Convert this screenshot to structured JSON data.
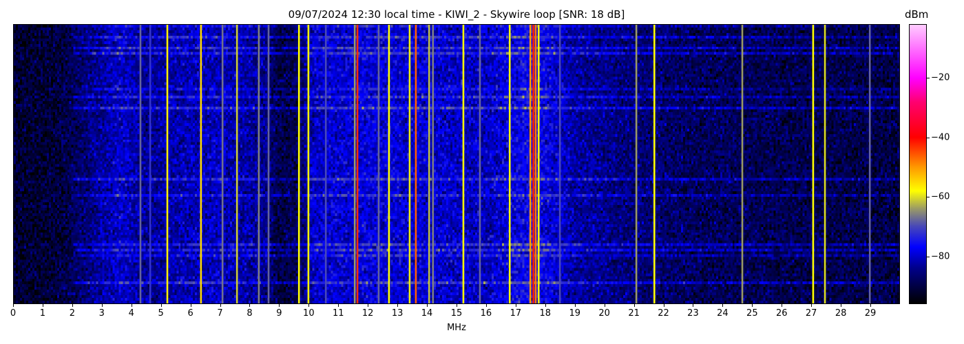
{
  "chart_data": {
    "type": "heatmap",
    "title": "09/07/2024 12:30 local time - KIWI_2 - Skywire loop [SNR: 18 dB]",
    "xlabel": "MHz",
    "ylabel": "",
    "xlim": [
      0,
      30
    ],
    "x_ticks": [
      "0",
      "1",
      "2",
      "3",
      "4",
      "5",
      "6",
      "7",
      "8",
      "9",
      "10",
      "11",
      "12",
      "13",
      "14",
      "15",
      "16",
      "17",
      "18",
      "19",
      "20",
      "21",
      "22",
      "23",
      "24",
      "25",
      "26",
      "27",
      "28",
      "29"
    ],
    "colorbar": {
      "label": "dBm",
      "range": [
        -96,
        -2
      ],
      "ticks": [
        "−20",
        "−40",
        "−60",
        "−80"
      ],
      "tick_values": [
        -20,
        -40,
        -60,
        -80
      ],
      "colormap_stops": [
        {
          "dbm": -96,
          "color": "#000000"
        },
        {
          "dbm": -84,
          "color": "#00008c"
        },
        {
          "dbm": -77,
          "color": "#0000ff"
        },
        {
          "dbm": -70,
          "color": "#4848b8"
        },
        {
          "dbm": -64,
          "color": "#9a9a66"
        },
        {
          "dbm": -58,
          "color": "#ffff00"
        },
        {
          "dbm": -50,
          "color": "#ff9900"
        },
        {
          "dbm": -40,
          "color": "#ff0000"
        },
        {
          "dbm": -28,
          "color": "#ff0070"
        },
        {
          "dbm": -20,
          "color": "#ff00ff"
        },
        {
          "dbm": -2,
          "color": "#ffccff"
        }
      ]
    },
    "background_level_dbm": [
      {
        "mhz": 0,
        "dbm": -92
      },
      {
        "mhz": 1.5,
        "dbm": -91
      },
      {
        "mhz": 2.5,
        "dbm": -86
      },
      {
        "mhz": 3.6,
        "dbm": -80
      },
      {
        "mhz": 4.5,
        "dbm": -84
      },
      {
        "mhz": 5.5,
        "dbm": -82
      },
      {
        "mhz": 7,
        "dbm": -81
      },
      {
        "mhz": 8.5,
        "dbm": -84
      },
      {
        "mhz": 9,
        "dbm": -90
      },
      {
        "mhz": 9.6,
        "dbm": -89
      },
      {
        "mhz": 10.2,
        "dbm": -80
      },
      {
        "mhz": 12,
        "dbm": -79
      },
      {
        "mhz": 14,
        "dbm": -80
      },
      {
        "mhz": 16,
        "dbm": -81
      },
      {
        "mhz": 17.6,
        "dbm": -76
      },
      {
        "mhz": 19,
        "dbm": -83
      },
      {
        "mhz": 21,
        "dbm": -86
      },
      {
        "mhz": 23,
        "dbm": -88
      },
      {
        "mhz": 26,
        "dbm": -89
      },
      {
        "mhz": 30,
        "dbm": -90
      }
    ],
    "signals": [
      {
        "mhz": 4.29,
        "dbm": -68
      },
      {
        "mhz": 4.62,
        "dbm": -72
      },
      {
        "mhz": 5.2,
        "dbm": -57
      },
      {
        "mhz": 6.34,
        "dbm": -55
      },
      {
        "mhz": 7.07,
        "dbm": -67
      },
      {
        "mhz": 7.56,
        "dbm": -61
      },
      {
        "mhz": 8.3,
        "dbm": -66
      },
      {
        "mhz": 8.63,
        "dbm": -68
      },
      {
        "mhz": 9.66,
        "dbm": -58
      },
      {
        "mhz": 9.98,
        "dbm": -58
      },
      {
        "mhz": 10.57,
        "dbm": -70
      },
      {
        "mhz": 11.55,
        "dbm": -64
      },
      {
        "mhz": 11.64,
        "dbm": -43
      },
      {
        "mhz": 12.36,
        "dbm": -68
      },
      {
        "mhz": 12.71,
        "dbm": -58
      },
      {
        "mhz": 13.41,
        "dbm": -59
      },
      {
        "mhz": 13.62,
        "dbm": -46
      },
      {
        "mhz": 14.07,
        "dbm": -62
      },
      {
        "mhz": 14.2,
        "dbm": -66
      },
      {
        "mhz": 15.23,
        "dbm": -58
      },
      {
        "mhz": 15.79,
        "dbm": -68
      },
      {
        "mhz": 16.8,
        "dbm": -58
      },
      {
        "mhz": 17.5,
        "dbm": -50
      },
      {
        "mhz": 17.6,
        "dbm": -42
      },
      {
        "mhz": 17.68,
        "dbm": -48
      },
      {
        "mhz": 17.78,
        "dbm": -58
      },
      {
        "mhz": 18.5,
        "dbm": -70
      },
      {
        "mhz": 21.09,
        "dbm": -64
      },
      {
        "mhz": 21.7,
        "dbm": -58
      },
      {
        "mhz": 24.68,
        "dbm": -64
      },
      {
        "mhz": 27.08,
        "dbm": -58
      },
      {
        "mhz": 27.48,
        "dbm": -60
      },
      {
        "mhz": 29.0,
        "dbm": -68
      }
    ]
  }
}
